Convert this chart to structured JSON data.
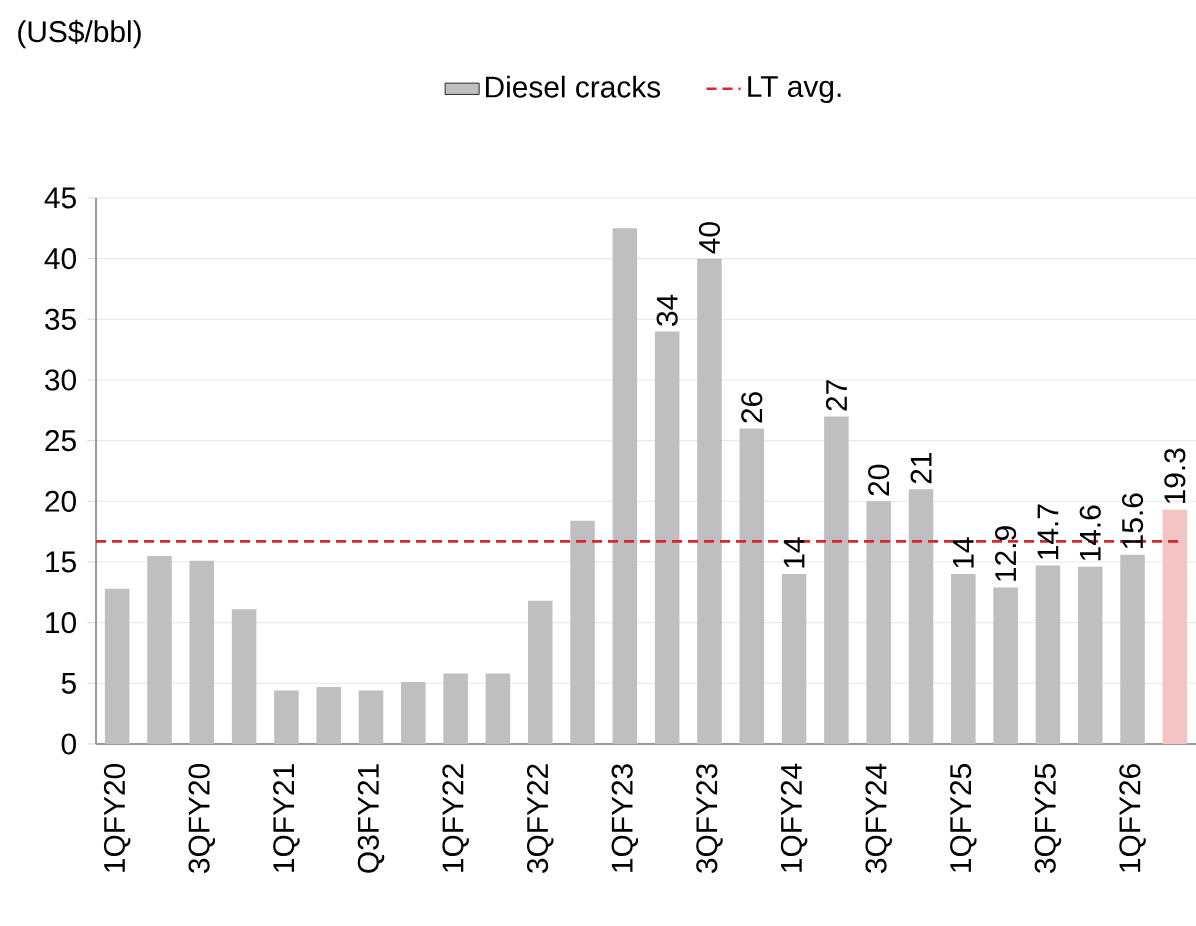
{
  "chart_data": {
    "type": "bar",
    "ylabel": "(US$/bbl)",
    "categories": [
      "1QFY20",
      null,
      "3QFY20",
      null,
      "1QFY21",
      null,
      "Q3FY21",
      null,
      "1QFY22",
      null,
      "3QFY22",
      null,
      "1QFY23",
      null,
      "3QFY23",
      null,
      "1QFY24",
      null,
      "3QFY24",
      null,
      "1QFY25",
      null,
      "3QFY25",
      null,
      "1QFY26",
      null
    ],
    "series": [
      {
        "name": "Diesel cracks",
        "color": "#bfbfbf",
        "colors": [
          "#bfbfbf",
          "#bfbfbf",
          "#bfbfbf",
          "#bfbfbf",
          "#bfbfbf",
          "#bfbfbf",
          "#bfbfbf",
          "#bfbfbf",
          "#bfbfbf",
          "#bfbfbf",
          "#bfbfbf",
          "#bfbfbf",
          "#bfbfbf",
          "#bfbfbf",
          "#bfbfbf",
          "#bfbfbf",
          "#bfbfbf",
          "#bfbfbf",
          "#bfbfbf",
          "#bfbfbf",
          "#bfbfbf",
          "#bfbfbf",
          "#bfbfbf",
          "#bfbfbf",
          "#bfbfbf",
          "#f2c4c4"
        ],
        "values": [
          12.8,
          15.5,
          15.1,
          11.1,
          4.4,
          4.7,
          4.4,
          5.1,
          5.8,
          5.8,
          11.8,
          18.4,
          42.5,
          34,
          40,
          26,
          14,
          27,
          20,
          21,
          14,
          12.9,
          14.7,
          14.6,
          15.6,
          19.3
        ],
        "value_labels": [
          null,
          null,
          null,
          null,
          null,
          null,
          null,
          null,
          null,
          null,
          null,
          null,
          null,
          "34",
          "40",
          "26",
          "14",
          "27",
          "20",
          "21",
          "14",
          "12.9",
          "14.7",
          "14.6",
          "15.6",
          "19.3"
        ]
      }
    ],
    "ref_lines": [
      {
        "axis": "y",
        "value": 16.7,
        "label": "LT avg.",
        "color": "#d62828",
        "line_style": "dashed"
      }
    ],
    "ylim": [
      0,
      45
    ],
    "yticks": [
      0,
      5,
      10,
      15,
      20,
      25,
      30,
      35,
      40,
      45
    ],
    "grid": "y",
    "legend": "top"
  }
}
